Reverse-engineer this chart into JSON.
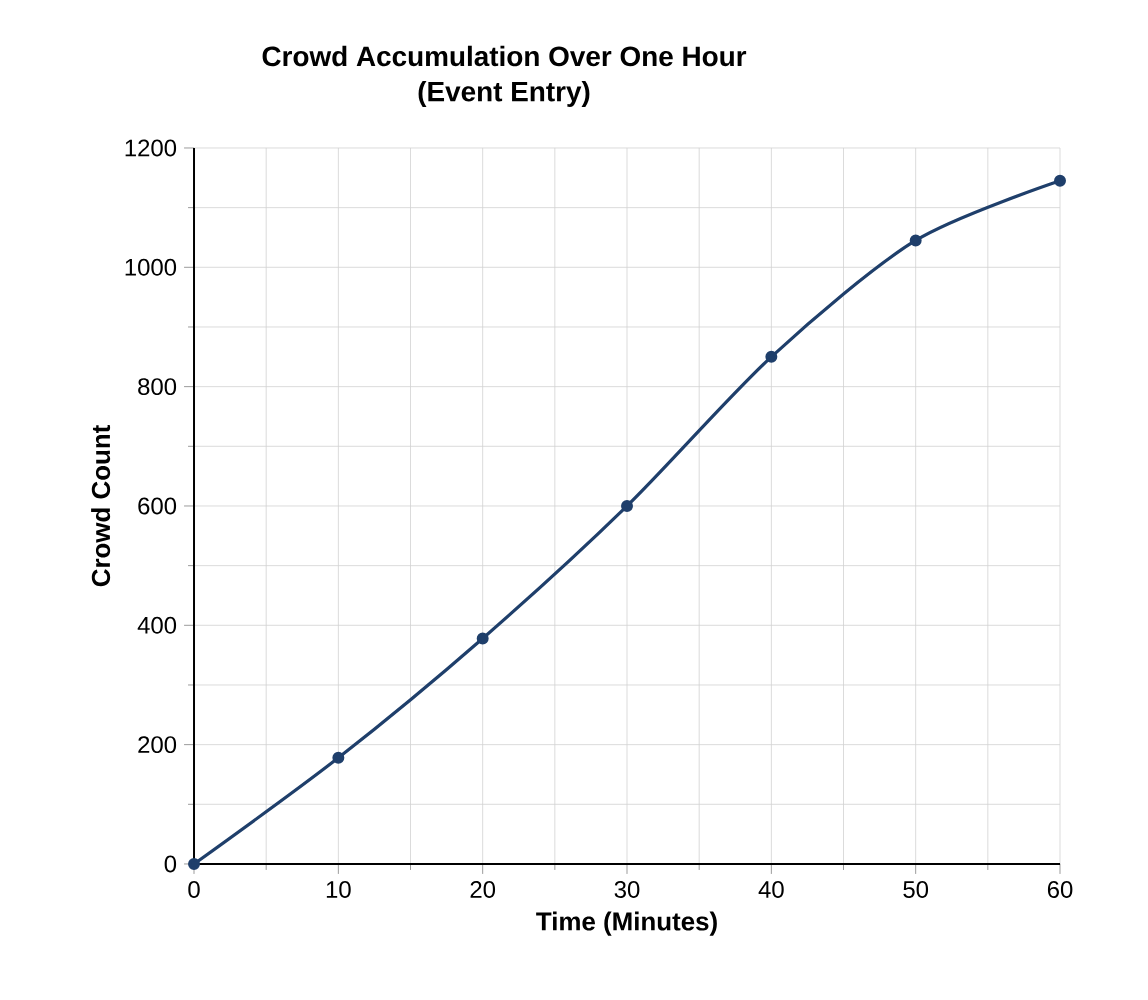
{
  "chart_data": {
    "type": "line",
    "title": "Crowd Accumulation Over One Hour",
    "subtitle": "(Event Entry)",
    "xlabel": "Time (Minutes)",
    "ylabel": "Crowd Count",
    "x": [
      0,
      10,
      20,
      30,
      40,
      50,
      60
    ],
    "series": [
      {
        "color": "#1f3f6b",
        "values": [
          0,
          178,
          378,
          600,
          850,
          1045,
          1145
        ]
      }
    ],
    "xlim": [
      0,
      60
    ],
    "ylim": [
      0,
      1200
    ],
    "xticks": [
      0,
      10,
      20,
      30,
      40,
      50,
      60
    ],
    "yticks": [
      0,
      200,
      400,
      600,
      800,
      1000,
      1200
    ],
    "grid": true,
    "marker": "circle",
    "line_style": "solid"
  }
}
